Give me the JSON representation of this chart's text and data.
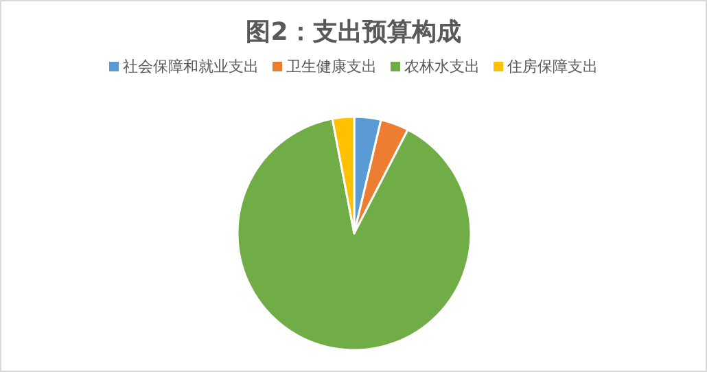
{
  "chart_data": {
    "type": "pie",
    "title": "图2：支出预算构成",
    "categories": [
      "社会保障和就业支出",
      "卫生健康支出",
      "农林水支出",
      "住房保障支出"
    ],
    "values": [
      3.7,
      3.9,
      89.4,
      3.0
    ],
    "colors": [
      "#5b9bd5",
      "#ed7d31",
      "#70ad47",
      "#ffc000"
    ],
    "legend": "top"
  }
}
